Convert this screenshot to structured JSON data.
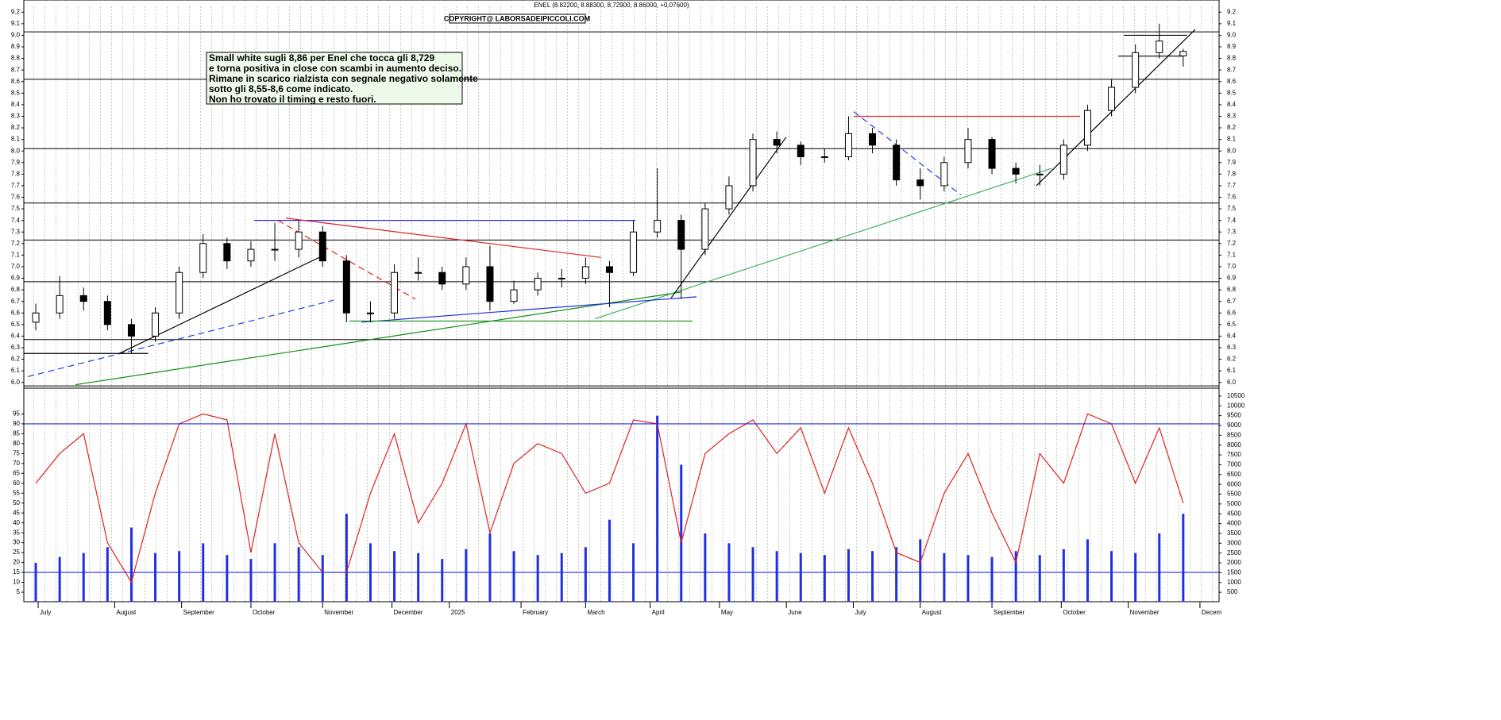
{
  "chart_data": [
    {
      "type": "candlestick",
      "title": "ENEL (8.82200, 8.88300, 8.72900, 8.86000, +0.07600)",
      "copyright": "COPYRIGHT@ LABORSADEIPICCOLI.COM",
      "annotation": [
        "Small white sugli 8,86 per Enel che tocca gli 8,729",
        "e torna positiva in close con scambi in aumento deciso.",
        "Rimane in scarico rialzista con segnale negativo solamente",
        "sotto gli 8,55-8,6 come indicato.",
        "Non ho trovato il timing e resto fuori."
      ],
      "xlim": [
        -0.5,
        49.5
      ],
      "xticks": [
        {
          "value": 0.1,
          "label": "July"
        },
        {
          "value": 3.3,
          "label": "August"
        },
        {
          "value": 6.1,
          "label": "September"
        },
        {
          "value": 9,
          "label": "October"
        },
        {
          "value": 12,
          "label": "November"
        },
        {
          "value": 14.9,
          "label": "December"
        },
        {
          "value": 17.3,
          "label": "2025"
        },
        {
          "value": 20.3,
          "label": "February"
        },
        {
          "value": 23,
          "label": "March"
        },
        {
          "value": 25.7,
          "label": "April"
        },
        {
          "value": 28.6,
          "label": "May"
        },
        {
          "value": 31.4,
          "label": "June"
        },
        {
          "value": 34.2,
          "label": "July"
        },
        {
          "value": 37,
          "label": "August"
        },
        {
          "value": 40,
          "label": "September"
        },
        {
          "value": 42.9,
          "label": "October"
        },
        {
          "value": 45.7,
          "label": "November"
        },
        {
          "value": 48.7,
          "label": "Decem"
        }
      ],
      "ylim": [
        5.95,
        9.25
      ],
      "yticks": [
        {
          "value": 6,
          "label": "6.0"
        },
        6.1,
        6.2,
        6.3,
        6.4,
        6.5,
        6.6,
        6.7,
        6.8,
        6.9,
        {
          "value": 7,
          "label": "7.0"
        },
        7.1,
        7.2,
        7.3,
        7.4,
        7.5,
        7.6,
        7.7,
        7.8,
        7.9,
        {
          "value": 8,
          "label": "8.0"
        },
        8.1,
        8.2,
        8.3,
        8.4,
        8.5,
        8.6,
        8.7,
        8.8,
        8.9,
        {
          "value": 9,
          "label": "9.0"
        },
        9.1,
        9.2
      ],
      "open": [
        6.52,
        6.6,
        6.75,
        6.7,
        6.5,
        6.4,
        6.6,
        6.95,
        7.2,
        7.05,
        7.15,
        7.15,
        7.3,
        7.05,
        6.6,
        6.6,
        6.95,
        6.95,
        6.85,
        7.0,
        6.7,
        6.8,
        6.9,
        6.9,
        7.0,
        6.95,
        7.3,
        7.4,
        7.15,
        7.5,
        7.7,
        8.1,
        8.05,
        7.95,
        7.95,
        8.15,
        8.05,
        7.75,
        7.7,
        7.9,
        8.1,
        7.85,
        7.8,
        7.8,
        8.05,
        8.35,
        8.55,
        8.85,
        8.822
      ],
      "high": [
        6.68,
        6.92,
        6.82,
        6.75,
        6.55,
        6.65,
        7.0,
        7.28,
        7.25,
        7.22,
        7.38,
        7.4,
        7.35,
        7.1,
        6.7,
        7.02,
        7.08,
        7.0,
        7.08,
        7.18,
        6.88,
        6.95,
        6.98,
        7.08,
        7.05,
        7.4,
        7.85,
        7.45,
        7.55,
        7.78,
        8.15,
        8.17,
        8.08,
        8.02,
        8.3,
        8.2,
        8.1,
        7.85,
        7.95,
        8.2,
        8.12,
        7.9,
        7.88,
        8.1,
        8.4,
        8.62,
        8.92,
        9.1,
        8.883
      ],
      "low": [
        6.45,
        6.55,
        6.62,
        6.45,
        6.25,
        6.35,
        6.55,
        6.9,
        6.98,
        7.0,
        7.05,
        7.08,
        7.0,
        6.52,
        6.52,
        6.55,
        6.88,
        6.8,
        6.8,
        6.62,
        6.68,
        6.75,
        6.82,
        6.85,
        6.65,
        6.92,
        7.25,
        6.72,
        7.1,
        7.45,
        7.65,
        7.98,
        7.88,
        7.9,
        7.92,
        7.98,
        7.7,
        7.58,
        7.65,
        7.85,
        7.8,
        7.72,
        7.7,
        7.75,
        8.0,
        8.3,
        8.5,
        8.8,
        8.729
      ],
      "close": [
        6.6,
        6.75,
        6.7,
        6.5,
        6.4,
        6.6,
        6.95,
        7.2,
        7.05,
        7.15,
        7.15,
        7.3,
        7.05,
        6.6,
        6.6,
        6.95,
        6.95,
        6.85,
        7.0,
        6.7,
        6.8,
        6.9,
        6.9,
        7.0,
        6.95,
        7.3,
        7.4,
        7.15,
        7.5,
        7.7,
        8.1,
        8.05,
        7.95,
        7.95,
        8.15,
        8.05,
        7.75,
        7.7,
        7.9,
        8.1,
        7.85,
        7.8,
        7.8,
        8.05,
        8.35,
        8.55,
        8.85,
        8.95,
        8.86
      ],
      "levels": [
        9.03,
        8.62,
        8.02,
        7.55,
        7.23,
        6.87,
        6.37,
        5.97
      ],
      "level_color": "#000000",
      "trendlines": [
        {
          "x": [
            -0.33,
            12.46
          ],
          "y": [
            6.05,
            6.71
          ],
          "color": "#2040e0",
          "dashed": true
        },
        {
          "x": [
            3.49,
            12.06
          ],
          "y": [
            6.25,
            7.1
          ],
          "color": "#000000",
          "dashed": false
        },
        {
          "x": [
            -0.5,
            4.7
          ],
          "y": [
            6.25,
            6.25
          ],
          "color": "#000000",
          "dashed": false
        },
        {
          "x": [
            1.66,
            26.97
          ],
          "y": [
            5.98,
            6.78
          ],
          "color": "#109010",
          "dashed": false
        },
        {
          "x": [
            23.4,
            42.5
          ],
          "y": [
            6.55,
            7.85
          ],
          "color": "#40b060",
          "dashed": false
        },
        {
          "x": [
            9.13,
            25.08
          ],
          "y": [
            7.4,
            7.4
          ],
          "color": "#2030e0",
          "dashed": false
        },
        {
          "x": [
            10.46,
            23.65
          ],
          "y": [
            7.42,
            7.08
          ],
          "color": "#e02020",
          "dashed": false
        },
        {
          "x": [
            10.13,
            15.88
          ],
          "y": [
            7.4,
            6.72
          ],
          "color": "#e02020",
          "dashed": true
        },
        {
          "x": [
            13.62,
            27.64
          ],
          "y": [
            6.52,
            6.74
          ],
          "color": "#2030e0",
          "dashed": false
        },
        {
          "x": [
            13.12,
            27.47
          ],
          "y": [
            6.53,
            6.53
          ],
          "color": "#109010",
          "dashed": false
        },
        {
          "x": [
            26.58,
            31.39
          ],
          "y": [
            6.73,
            8.12
          ],
          "color": "#000000",
          "dashed": false
        },
        {
          "x": [
            34.22,
            43.69
          ],
          "y": [
            8.3,
            8.3
          ],
          "color": "#e02020",
          "dashed": false
        },
        {
          "x": [
            34.22,
            38.7
          ],
          "y": [
            8.34,
            7.62
          ],
          "color": "#2040e0",
          "dashed": true
        },
        {
          "x": [
            41.86,
            48.5
          ],
          "y": [
            7.7,
            9.05
          ],
          "color": "#000000",
          "dashed": false
        },
        {
          "x": [
            45.28,
            48.0
          ],
          "y": [
            8.82,
            8.82
          ],
          "color": "#000000",
          "dashed": false
        },
        {
          "x": [
            45.51,
            48.16
          ],
          "y": [
            9.0,
            9.0
          ],
          "color": "#000000",
          "dashed": false
        }
      ]
    },
    {
      "type": "oscillator",
      "xlim": [
        -0.5,
        49.5
      ],
      "ylim": [
        0,
        108
      ],
      "yticks": [
        5,
        10,
        15,
        20,
        25,
        30,
        35,
        40,
        45,
        50,
        55,
        60,
        65,
        70,
        75,
        80,
        85,
        90,
        95
      ],
      "y2lim": [
        0,
        10900
      ],
      "y2ticks": [
        500,
        1000,
        1500,
        2000,
        2500,
        3000,
        3500,
        4000,
        4500,
        5000,
        5500,
        6000,
        6500,
        7000,
        7500,
        8000,
        8500,
        9000,
        9500,
        10000,
        10500
      ],
      "hlines": [
        90,
        15
      ],
      "hline_color": "#2030e0",
      "series": [
        {
          "type": "bar",
          "axis": "y2",
          "color": "#2030e0",
          "values": [
            2000,
            2300,
            2500,
            2800,
            3800,
            2500,
            2600,
            3000,
            2400,
            2200,
            3000,
            2800,
            2400,
            4500,
            3000,
            2600,
            2500,
            2200,
            2700,
            3500,
            2600,
            2400,
            2500,
            2800,
            4200,
            3000,
            9500,
            7000,
            3500,
            3000,
            2800,
            2600,
            2500,
            2400,
            2700,
            2600,
            2800,
            3200,
            2500,
            2400,
            2300,
            2600,
            2400,
            2700,
            3200,
            2600,
            2500,
            3500,
            4500
          ]
        },
        {
          "type": "line",
          "color": "#e02020",
          "values": [
            60,
            75,
            85,
            30,
            10,
            55,
            90,
            95,
            92,
            25,
            85,
            30,
            15,
            15,
            55,
            85,
            40,
            60,
            90,
            35,
            70,
            80,
            75,
            55,
            60,
            92,
            90,
            30,
            75,
            85,
            92,
            75,
            88,
            55,
            88,
            60,
            25,
            20,
            55,
            75,
            45,
            20,
            75,
            60,
            95,
            90,
            60,
            88,
            50
          ]
        }
      ]
    }
  ]
}
